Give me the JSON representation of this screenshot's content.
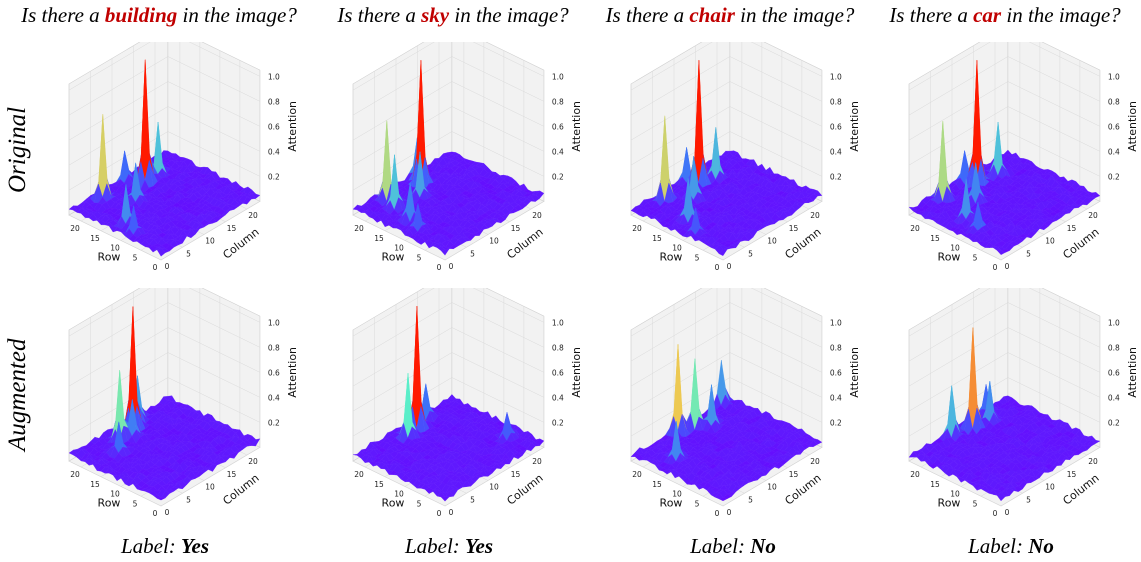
{
  "columns": [
    {
      "prefix": "Is there a ",
      "object": "building",
      "suffix": " in the image?"
    },
    {
      "prefix": "Is there a ",
      "object": "sky",
      "suffix": " in the image?"
    },
    {
      "prefix": "Is there a ",
      "object": "chair",
      "suffix": " in the image?"
    },
    {
      "prefix": "Is there a ",
      "object": "car",
      "suffix": " in the image?"
    }
  ],
  "rows": [
    "Original",
    "Augmented"
  ],
  "labels": [
    {
      "prefix": "Label: ",
      "value": "Yes"
    },
    {
      "prefix": "Label: ",
      "value": "Yes"
    },
    {
      "prefix": "Label: ",
      "value": "No"
    },
    {
      "prefix": "Label: ",
      "value": "No"
    }
  ],
  "colors": {
    "low": "#6a00ff",
    "mid": "#5ef0c8",
    "high": "#ff1a00"
  },
  "chart_data": [
    {
      "type": "surface3d",
      "row": "Original",
      "question": "building",
      "xlabel": "Row",
      "ylabel": "Column",
      "zlabel": "Attention",
      "x_ticks": [
        0,
        5,
        10,
        15,
        20
      ],
      "y_ticks": [
        0,
        5,
        10,
        15,
        20
      ],
      "z_ticks": [
        0.2,
        0.4,
        0.6,
        0.8,
        1.0
      ],
      "grid_size": 24,
      "base": 0.03,
      "peaks": [
        {
          "x": 19,
          "y": 14,
          "z": 1.0
        },
        {
          "x": 21,
          "y": 6,
          "z": 0.65
        },
        {
          "x": 19,
          "y": 17,
          "z": 0.4
        },
        {
          "x": 12,
          "y": 3,
          "z": 0.3
        },
        {
          "x": 16,
          "y": 9,
          "z": 0.3
        },
        {
          "x": 22,
          "y": 12,
          "z": 0.25
        },
        {
          "x": 9,
          "y": 2,
          "z": 0.2
        }
      ]
    },
    {
      "type": "surface3d",
      "row": "Original",
      "question": "sky",
      "xlabel": "Row",
      "ylabel": "Column",
      "zlabel": "Attention",
      "x_ticks": [
        0,
        5,
        10,
        15,
        20
      ],
      "y_ticks": [
        0,
        5,
        10,
        15,
        20
      ],
      "z_ticks": [
        0.2,
        0.4,
        0.6,
        0.8,
        1.0
      ],
      "grid_size": 24,
      "base": 0.03,
      "peaks": [
        {
          "x": 20,
          "y": 13,
          "z": 1.0
        },
        {
          "x": 21,
          "y": 6,
          "z": 0.6
        },
        {
          "x": 18,
          "y": 5,
          "z": 0.4
        },
        {
          "x": 13,
          "y": 4,
          "z": 0.3
        },
        {
          "x": 17,
          "y": 10,
          "z": 0.35
        },
        {
          "x": 22,
          "y": 14,
          "z": 0.3
        },
        {
          "x": 10,
          "y": 3,
          "z": 0.2
        }
      ]
    },
    {
      "type": "surface3d",
      "row": "Original",
      "question": "chair",
      "xlabel": "Row",
      "ylabel": "Column",
      "zlabel": "Attention",
      "x_ticks": [
        0,
        5,
        10,
        15,
        20
      ],
      "y_ticks": [
        0,
        5,
        10,
        15,
        20
      ],
      "z_ticks": [
        0.2,
        0.4,
        0.6,
        0.8,
        1.0
      ],
      "grid_size": 24,
      "base": 0.03,
      "peaks": [
        {
          "x": 20,
          "y": 13,
          "z": 1.0
        },
        {
          "x": 21,
          "y": 6,
          "z": 0.65
        },
        {
          "x": 19,
          "y": 16,
          "z": 0.4
        },
        {
          "x": 13,
          "y": 4,
          "z": 0.3
        },
        {
          "x": 17,
          "y": 9,
          "z": 0.35
        },
        {
          "x": 22,
          "y": 12,
          "z": 0.25
        },
        {
          "x": 9,
          "y": 2,
          "z": 0.2
        }
      ]
    },
    {
      "type": "surface3d",
      "row": "Original",
      "question": "car",
      "xlabel": "Row",
      "ylabel": "Column",
      "zlabel": "Attention",
      "x_ticks": [
        0,
        5,
        10,
        15,
        20
      ],
      "y_ticks": [
        0,
        5,
        10,
        15,
        20
      ],
      "z_ticks": [
        0.2,
        0.4,
        0.6,
        0.8,
        1.0
      ],
      "grid_size": 24,
      "base": 0.03,
      "peaks": [
        {
          "x": 20,
          "y": 13,
          "z": 1.0
        },
        {
          "x": 21,
          "y": 6,
          "z": 0.6
        },
        {
          "x": 19,
          "y": 17,
          "z": 0.4
        },
        {
          "x": 13,
          "y": 4,
          "z": 0.3
        },
        {
          "x": 16,
          "y": 9,
          "z": 0.3
        },
        {
          "x": 22,
          "y": 12,
          "z": 0.25
        },
        {
          "x": 9,
          "y": 3,
          "z": 0.2
        }
      ]
    },
    {
      "type": "surface3d",
      "row": "Augmented",
      "question": "building",
      "xlabel": "Row",
      "ylabel": "Column",
      "zlabel": "Attention",
      "x_ticks": [
        0,
        5,
        10,
        15,
        20
      ],
      "y_ticks": [
        0,
        5,
        10,
        15,
        20
      ],
      "z_ticks": [
        0.2,
        0.4,
        0.6,
        0.8,
        1.0
      ],
      "grid_size": 24,
      "base": 0.03,
      "peaks": [
        {
          "x": 21,
          "y": 13,
          "z": 0.95
        },
        {
          "x": 20,
          "y": 9,
          "z": 0.55
        },
        {
          "x": 22,
          "y": 15,
          "z": 0.35
        },
        {
          "x": 17,
          "y": 6,
          "z": 0.25
        },
        {
          "x": 19,
          "y": 11,
          "z": 0.3
        }
      ]
    },
    {
      "type": "surface3d",
      "row": "Augmented",
      "question": "sky",
      "xlabel": "Row",
      "ylabel": "Column",
      "zlabel": "Attention",
      "x_ticks": [
        0,
        5,
        10,
        15,
        20
      ],
      "y_ticks": [
        0,
        5,
        10,
        15,
        20
      ],
      "z_ticks": [
        0.2,
        0.4,
        0.6,
        0.8,
        1.0
      ],
      "grid_size": 24,
      "base": 0.03,
      "peaks": [
        {
          "x": 21,
          "y": 13,
          "z": 0.95
        },
        {
          "x": 20,
          "y": 10,
          "z": 0.5
        },
        {
          "x": 6,
          "y": 20,
          "z": 0.2
        },
        {
          "x": 22,
          "y": 16,
          "z": 0.25
        }
      ]
    },
    {
      "type": "surface3d",
      "row": "Augmented",
      "question": "chair",
      "xlabel": "Row",
      "ylabel": "Column",
      "zlabel": "Attention",
      "x_ticks": [
        0,
        5,
        10,
        15,
        20
      ],
      "y_ticks": [
        0,
        5,
        10,
        15,
        20
      ],
      "z_ticks": [
        0.2,
        0.4,
        0.6,
        0.8,
        1.0
      ],
      "grid_size": 24,
      "base": 0.03,
      "peaks": [
        {
          "x": 22,
          "y": 10,
          "z": 0.7
        },
        {
          "x": 21,
          "y": 13,
          "z": 0.55
        },
        {
          "x": 23,
          "y": 21,
          "z": 0.35
        },
        {
          "x": 16,
          "y": 4,
          "z": 0.3
        },
        {
          "x": 19,
          "y": 15,
          "z": 0.3
        }
      ]
    },
    {
      "type": "surface3d",
      "row": "Augmented",
      "question": "car",
      "xlabel": "Row",
      "ylabel": "Column",
      "zlabel": "Attention",
      "x_ticks": [
        0,
        5,
        10,
        15,
        20
      ],
      "y_ticks": [
        0,
        5,
        10,
        15,
        20
      ],
      "z_ticks": [
        0.2,
        0.4,
        0.6,
        0.8,
        1.0
      ],
      "grid_size": 24,
      "base": 0.03,
      "peaks": [
        {
          "x": 21,
          "y": 13,
          "z": 0.8
        },
        {
          "x": 22,
          "y": 9,
          "z": 0.4
        },
        {
          "x": 20,
          "y": 16,
          "z": 0.3
        },
        {
          "x": 22,
          "y": 17,
          "z": 0.25
        }
      ]
    }
  ]
}
